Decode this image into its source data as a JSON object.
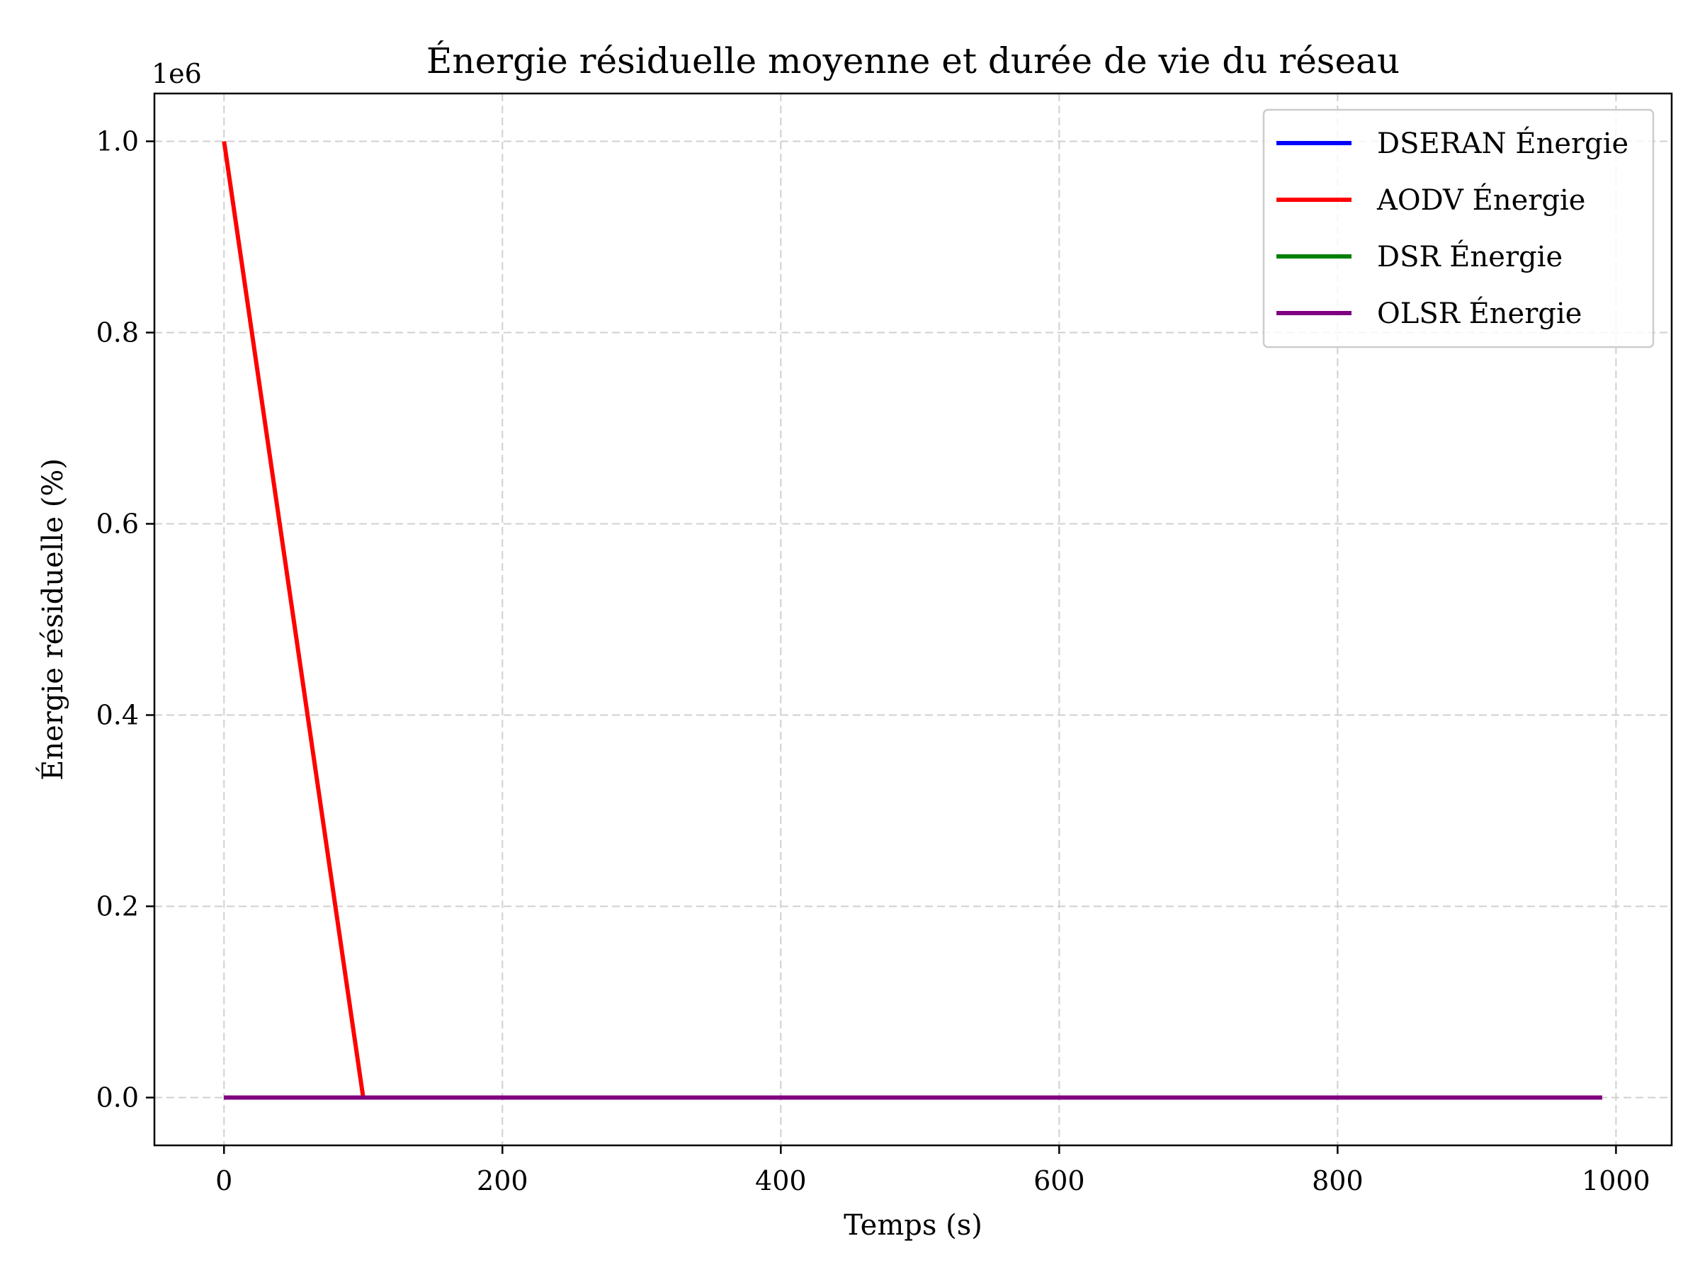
{
  "chart_data": {
    "type": "line",
    "title": "Énergie résiduelle moyenne et durée de vie du réseau",
    "xlabel": "Temps (s)",
    "ylabel": "Énergie résiduelle (%)",
    "y_scale_label": "1e6",
    "xlim": [
      -50,
      1040
    ],
    "ylim": [
      -0.05,
      1.05
    ],
    "y_multiplier": 1000000,
    "x_ticks": [
      0,
      200,
      400,
      600,
      800,
      1000
    ],
    "x_tick_labels": [
      "0",
      "200",
      "400",
      "600",
      "800",
      "1000"
    ],
    "y_ticks": [
      0.0,
      0.2,
      0.4,
      0.6,
      0.8,
      1.0
    ],
    "y_tick_labels": [
      "0.0",
      "0.2",
      "0.4",
      "0.6",
      "0.8",
      "1.0"
    ],
    "grid": true,
    "legend_position": "top-right",
    "series": [
      {
        "name": "DSERAN Énergie",
        "color": "#0000ff",
        "x": [
          0,
          990
        ],
        "y": [
          0,
          0
        ]
      },
      {
        "name": "AODV Énergie",
        "color": "#ff0000",
        "x": [
          0,
          99,
          100,
          101,
          990
        ],
        "y": [
          1.0,
          0.01,
          0.0,
          0.0,
          0.0
        ]
      },
      {
        "name": "DSR Énergie",
        "color": "#008000",
        "x": [
          0,
          990
        ],
        "y": [
          0,
          0
        ]
      },
      {
        "name": "OLSR Énergie",
        "color": "#800080",
        "x": [
          0,
          990
        ],
        "y": [
          0,
          0
        ]
      }
    ]
  }
}
